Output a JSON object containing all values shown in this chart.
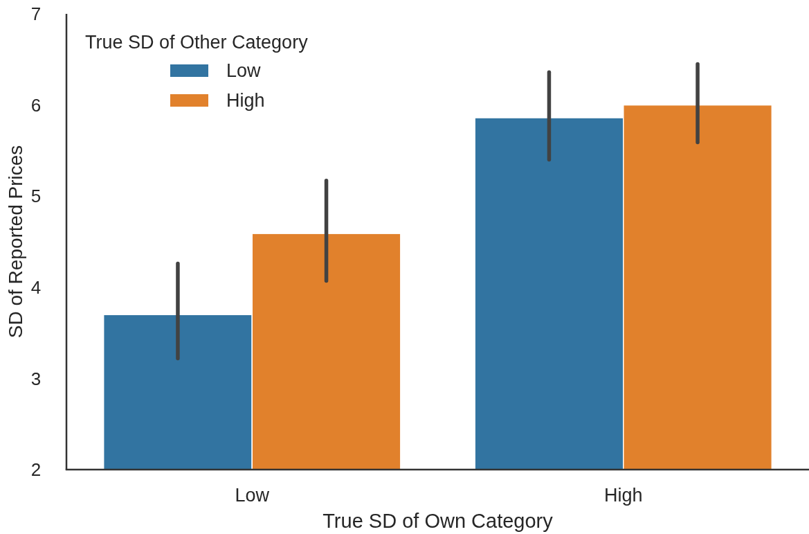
{
  "chart_data": {
    "type": "bar",
    "xlabel": "True SD of Own Category",
    "ylabel": "SD of Reported Prices",
    "legend_title": "True SD of Other Category",
    "categories": [
      "Low",
      "High"
    ],
    "series": [
      {
        "name": "Low",
        "color": "#3274a1",
        "values": [
          3.7,
          5.86
        ],
        "errors": [
          [
            3.22,
            4.26
          ],
          [
            5.4,
            6.36
          ]
        ]
      },
      {
        "name": "High",
        "color": "#e1812c",
        "values": [
          4.59,
          6.0
        ],
        "errors": [
          [
            4.07,
            5.17
          ],
          [
            5.59,
            6.45
          ]
        ]
      }
    ],
    "ylim": [
      2,
      7
    ],
    "yticks": [
      2,
      3,
      4,
      5,
      6,
      7
    ],
    "grid": false,
    "legend": "top left"
  }
}
